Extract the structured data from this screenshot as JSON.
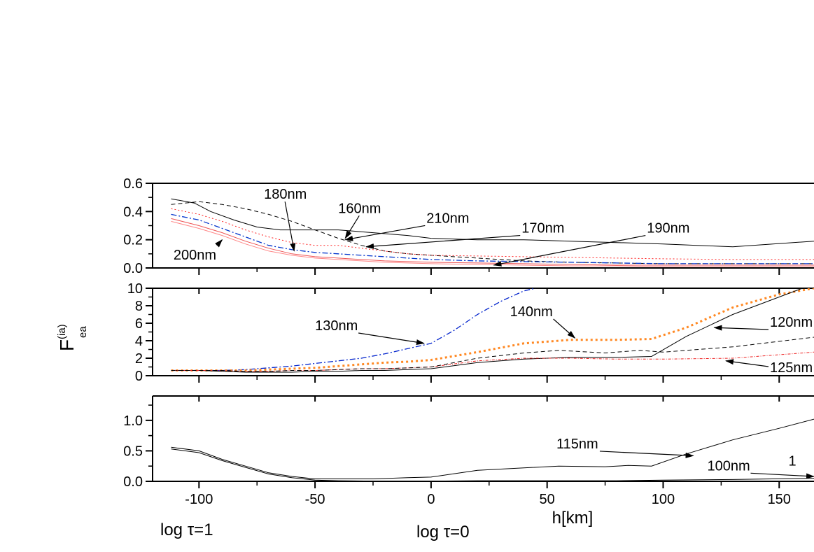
{
  "chart_data": {
    "type": "line",
    "xlabel": "h[km]",
    "ylabel": {
      "main": "F",
      "sup": "(ia)",
      "sub": "ea"
    },
    "x_ticks": [
      -100,
      -50,
      0,
      50,
      100,
      150
    ],
    "xlim": [
      -120,
      165
    ],
    "extra_labels": [
      {
        "text": "log τ=1",
        "x": -112
      },
      {
        "text": "log τ=0",
        "x": -7
      }
    ],
    "panels": [
      {
        "id": "top",
        "ylim": [
          0,
          0.6
        ],
        "yticks": [
          0.0,
          0.2,
          0.4,
          0.6
        ],
        "ytick_labels": [
          "0.0",
          "0.2",
          "0.4",
          "0.6"
        ],
        "series": [
          {
            "name": "180nm",
            "color": "#000000",
            "dash": "",
            "width": 1,
            "x": [
              -112,
              -102,
              -95,
              -85,
              -75,
              -65,
              -55,
              -40,
              -25,
              -10,
              0,
              20,
              40,
              60,
              80,
              100,
              130,
              165
            ],
            "y": [
              0.49,
              0.46,
              0.4,
              0.34,
              0.29,
              0.27,
              0.27,
              0.27,
              0.25,
              0.23,
              0.21,
              0.2,
              0.2,
              0.19,
              0.18,
              0.17,
              0.15,
              0.19
            ]
          },
          {
            "name": "160nm",
            "color": "#000000",
            "dash": "6,4",
            "width": 1,
            "x": [
              -112,
              -100,
              -90,
              -80,
              -70,
              -60,
              -50,
              -40,
              -30,
              -20,
              -10,
              0,
              20,
              40,
              60,
              80,
              100,
              130,
              165
            ],
            "y": [
              0.45,
              0.47,
              0.45,
              0.42,
              0.38,
              0.33,
              0.27,
              0.21,
              0.16,
              0.12,
              0.1,
              0.09,
              0.07,
              0.05,
              0.04,
              0.035,
              0.03,
              0.03,
              0.03
            ]
          },
          {
            "name": "210nm",
            "color": "#ff2222",
            "dash": "2,3",
            "width": 1,
            "x": [
              -112,
              -100,
              -90,
              -80,
              -70,
              -60,
              -50,
              -40,
              -30,
              -20,
              -10,
              0,
              20,
              40,
              60,
              80,
              100,
              130,
              165
            ],
            "y": [
              0.42,
              0.38,
              0.33,
              0.27,
              0.22,
              0.18,
              0.16,
              0.16,
              0.14,
              0.12,
              0.1,
              0.09,
              0.085,
              0.08,
              0.075,
              0.07,
              0.065,
              0.06,
              0.06
            ]
          },
          {
            "name": "170nm",
            "color": "#0033cc",
            "dash": "8,3,2,3",
            "width": 1.3,
            "x": [
              -112,
              -100,
              -90,
              -80,
              -70,
              -60,
              -50,
              -40,
              -30,
              -20,
              -10,
              0,
              20,
              40,
              60,
              80,
              100,
              130,
              165
            ],
            "y": [
              0.38,
              0.34,
              0.28,
              0.22,
              0.16,
              0.13,
              0.11,
              0.1,
              0.09,
              0.08,
              0.07,
              0.06,
              0.05,
              0.045,
              0.04,
              0.035,
              0.03,
              0.03,
              0.03
            ]
          },
          {
            "name": "190nm",
            "color": "#ee5555",
            "dash": "",
            "width": 1,
            "x": [
              -112,
              -100,
              -90,
              -80,
              -70,
              -60,
              -50,
              -40,
              -30,
              -20,
              -10,
              0,
              20,
              40,
              60,
              80,
              100,
              130,
              165
            ],
            "y": [
              0.35,
              0.3,
              0.25,
              0.19,
              0.14,
              0.1,
              0.08,
              0.07,
              0.06,
              0.05,
              0.045,
              0.04,
              0.035,
              0.03,
              0.025,
              0.02,
              0.02,
              0.02,
              0.02
            ]
          },
          {
            "name": "200nm",
            "color": "#ff8888",
            "dash": "",
            "width": 1,
            "x": [
              -112,
              -100,
              -90,
              -80,
              -70,
              -60,
              -50,
              -40,
              -30,
              -20,
              -10,
              0,
              20,
              40,
              60,
              80,
              100,
              130,
              165
            ],
            "y": [
              0.33,
              0.28,
              0.23,
              0.17,
              0.12,
              0.09,
              0.07,
              0.06,
              0.05,
              0.04,
              0.035,
              0.03,
              0.025,
              0.02,
              0.015,
              0.015,
              0.01,
              0.01,
              0.01
            ]
          }
        ],
        "annotations": [
          {
            "text": "180nm",
            "tx": -72,
            "ty": 0.49,
            "ax": -59,
            "ay": 0.12
          },
          {
            "text": "160nm",
            "tx": -40,
            "ty": 0.39,
            "ax": -37,
            "ay": 0.21
          },
          {
            "text": "210nm",
            "tx": -2,
            "ty": 0.32,
            "ax": -37,
            "ay": 0.2
          },
          {
            "text": "170nm",
            "tx": 39,
            "ty": 0.25,
            "ax": -28,
            "ay": 0.15
          },
          {
            "text": "190nm",
            "tx": 93,
            "ty": 0.25,
            "ax": 27,
            "ay": 0.02
          },
          {
            "text": "200nm",
            "tx": -111,
            "ty": 0.06,
            "ax": -90,
            "ay": 0.2
          }
        ]
      },
      {
        "id": "middle",
        "ylim": [
          0,
          10
        ],
        "yticks": [
          0,
          2,
          4,
          6,
          8,
          10
        ],
        "ytick_labels": [
          "0",
          "2",
          "4",
          "6",
          "8",
          "10"
        ],
        "series": [
          {
            "name": "130nm",
            "color": "#0022cc",
            "dash": "8,3,2,3",
            "width": 1.3,
            "x": [
              -112,
              -100,
              -90,
              -80,
              -70,
              -60,
              -50,
              -40,
              -30,
              -20,
              -10,
              0,
              10,
              20,
              30,
              40,
              45
            ],
            "y": [
              0.6,
              0.6,
              0.6,
              0.7,
              0.9,
              1.1,
              1.4,
              1.7,
              2.0,
              2.5,
              3.1,
              3.7,
              5.2,
              7.0,
              8.5,
              9.7,
              10.0
            ]
          },
          {
            "name": "140nm",
            "color": "#ff8822",
            "dash": "3,4",
            "width": 3,
            "x": [
              -112,
              -100,
              -90,
              -80,
              -70,
              -60,
              -50,
              -40,
              -30,
              -20,
              -10,
              0,
              20,
              40,
              60,
              80,
              95,
              110,
              130,
              150,
              165
            ],
            "y": [
              0.6,
              0.6,
              0.6,
              0.6,
              0.7,
              0.8,
              0.9,
              1.1,
              1.3,
              1.5,
              1.6,
              1.8,
              2.7,
              3.7,
              4.1,
              4.1,
              4.2,
              5.5,
              7.8,
              9.3,
              10.0
            ]
          },
          {
            "name": "120nm",
            "color": "#000000",
            "dash": "",
            "width": 1,
            "x": [
              -112,
              -100,
              -90,
              -80,
              -70,
              -60,
              -50,
              -40,
              -30,
              -20,
              -10,
              0,
              20,
              40,
              60,
              80,
              95,
              110,
              130,
              150,
              160
            ],
            "y": [
              0.6,
              0.6,
              0.5,
              0.4,
              0.4,
              0.4,
              0.5,
              0.5,
              0.6,
              0.6,
              0.7,
              0.8,
              1.5,
              1.9,
              2.1,
              2.1,
              2.2,
              4.5,
              7.0,
              9.0,
              10.0
            ]
          },
          {
            "name": "125nm",
            "color": "#ee2222",
            "dash": "4,2,1,2",
            "width": 1,
            "x": [
              -112,
              -100,
              -90,
              -80,
              -70,
              -60,
              -50,
              -40,
              -30,
              -20,
              -10,
              0,
              20,
              40,
              60,
              80,
              100,
              130,
              165
            ],
            "y": [
              0.6,
              0.6,
              0.6,
              0.5,
              0.5,
              0.6,
              0.6,
              0.7,
              0.8,
              0.8,
              0.9,
              1.0,
              1.7,
              2.0,
              2.0,
              1.9,
              1.9,
              2.0,
              2.7
            ]
          },
          {
            "name": "",
            "color": "#000000",
            "dash": "6,4",
            "width": 1,
            "x": [
              -112,
              -100,
              -90,
              -80,
              -70,
              -60,
              -50,
              -40,
              -30,
              -20,
              -10,
              0,
              20,
              40,
              55,
              75,
              90,
              100,
              130,
              165
            ],
            "y": [
              0.6,
              0.6,
              0.6,
              0.5,
              0.5,
              0.6,
              0.6,
              0.7,
              0.8,
              0.8,
              0.9,
              1.0,
              2.0,
              2.6,
              2.9,
              2.6,
              2.9,
              2.7,
              3.3,
              4.4
            ]
          }
        ],
        "annotations": [
          {
            "text": "130nm",
            "tx": -50,
            "ty": 5.2,
            "ax": -3,
            "ay": 3.7
          },
          {
            "text": "140nm",
            "tx": 34,
            "ty": 6.8,
            "ax": 62,
            "ay": 4.3
          },
          {
            "text": "120nm",
            "tx": 146,
            "ty": 5.6,
            "ax": 122,
            "ay": 5.5
          },
          {
            "text": "125nm",
            "tx": 146,
            "ty": 0.4,
            "ax": 127,
            "ay": 1.7
          }
        ]
      },
      {
        "id": "bottom",
        "ylim": [
          0,
          1.4
        ],
        "yticks": [
          0.0,
          0.5,
          1.0
        ],
        "ytick_labels": [
          "0.0",
          "0.5",
          "1.0"
        ],
        "minor_yticks": [
          0.25,
          0.75,
          1.25
        ],
        "series": [
          {
            "name": "115nm",
            "color": "#000000",
            "dash": "",
            "width": 1,
            "x": [
              -112,
              -100,
              -90,
              -80,
              -70,
              -60,
              -50,
              -40,
              -25,
              -10,
              0,
              20,
              40,
              55,
              75,
              85,
              95,
              110,
              130,
              150,
              165
            ],
            "y": [
              0.56,
              0.5,
              0.36,
              0.25,
              0.14,
              0.08,
              0.04,
              0.04,
              0.04,
              0.06,
              0.07,
              0.18,
              0.22,
              0.25,
              0.24,
              0.26,
              0.25,
              0.45,
              0.68,
              0.87,
              1.02
            ]
          },
          {
            "name": "100nm",
            "color": "#000000",
            "dash": "",
            "width": 1,
            "x": [
              -112,
              -100,
              -90,
              -80,
              -70,
              -60,
              -50,
              -40,
              -25,
              -10,
              0,
              20,
              40,
              60,
              80,
              100,
              130,
              165
            ],
            "y": [
              0.53,
              0.47,
              0.34,
              0.23,
              0.12,
              0.06,
              0.02,
              0.01,
              0.005,
              0.005,
              0.005,
              0.01,
              0.01,
              0.01,
              0.01,
              0.02,
              0.03,
              0.05
            ]
          }
        ],
        "annotations": [
          {
            "text": "115nm",
            "tx": 54,
            "ty": 0.54,
            "ax": 113,
            "ay": 0.42
          },
          {
            "text": "100nm",
            "tx": 119,
            "ty": 0.18,
            "ax": 165,
            "ay": 0.08
          },
          {
            "text": "1",
            "tx": 154,
            "ty": 0.26,
            "ax": null,
            "ay": null
          }
        ]
      }
    ]
  }
}
